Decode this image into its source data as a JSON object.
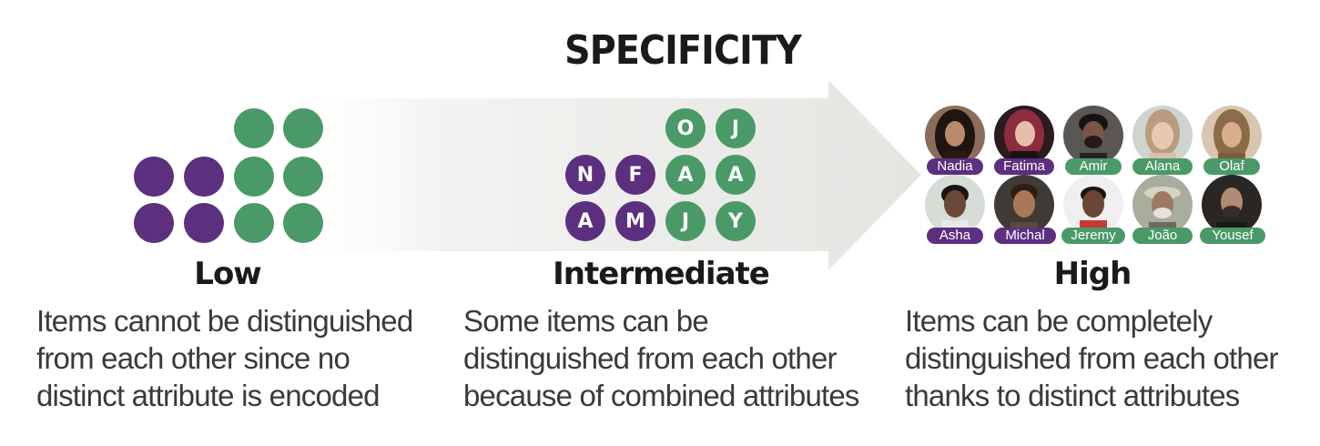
{
  "title": "SPECIFICITY",
  "colors": {
    "purple": "#5d2f7f",
    "green": "#4a9a68",
    "arrow_gradient_start": "#ffffff",
    "arrow_gradient_end": "#e6e6e3"
  },
  "low": {
    "label": "Low",
    "description_lines": [
      "Items cannot be distinguished",
      "from each other since no",
      "distinct attribute is encoded"
    ]
  },
  "intermediate": {
    "label": "Intermediate",
    "description_lines": [
      "Some items can be",
      "distinguished from each other",
      "because of combined attributes"
    ],
    "letters": {
      "top_row": [
        "O",
        "J"
      ],
      "middle_row": [
        "N",
        "F",
        "A",
        "A"
      ],
      "bottom_row": [
        "A",
        "M",
        "J",
        "Y"
      ]
    }
  },
  "high": {
    "label": "High",
    "description_lines": [
      "Items can be completely",
      "distinguished from each other",
      "thanks to distinct attributes"
    ],
    "people": [
      {
        "name": "Nadia",
        "color": "purple"
      },
      {
        "name": "Fatima",
        "color": "purple"
      },
      {
        "name": "Amir",
        "color": "green"
      },
      {
        "name": "Alana",
        "color": "green"
      },
      {
        "name": "Olaf",
        "color": "green"
      },
      {
        "name": "Asha",
        "color": "purple"
      },
      {
        "name": "Michal",
        "color": "purple"
      },
      {
        "name": "Jeremy",
        "color": "green"
      },
      {
        "name": "João",
        "color": "green"
      },
      {
        "name": "Yousef",
        "color": "green"
      }
    ]
  }
}
